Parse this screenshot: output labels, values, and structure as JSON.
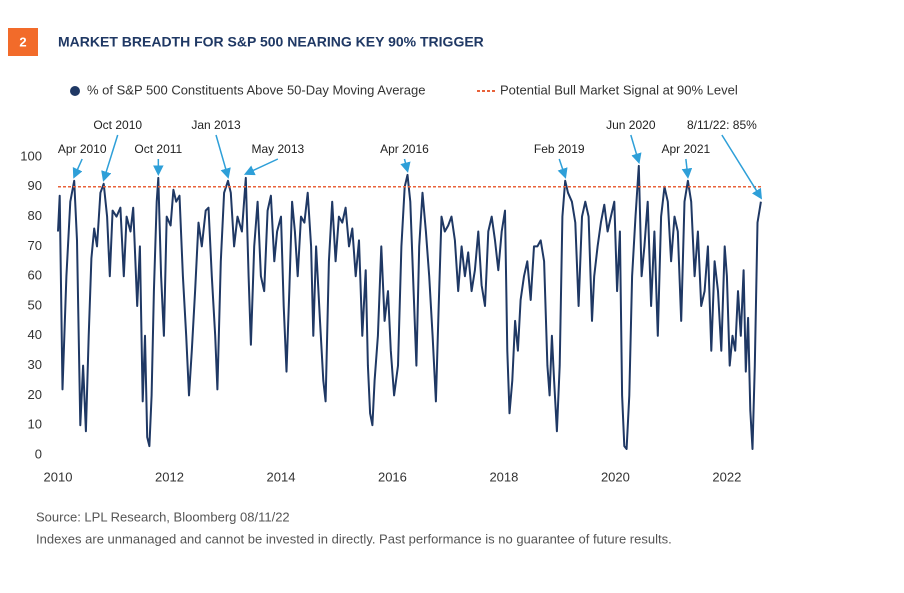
{
  "chart_data": {
    "type": "line",
    "badge": "2",
    "title": "MARKET BREADTH FOR S&P 500 NEARING KEY 90% TRIGGER",
    "series": [
      {
        "name": "% of S&P 500 Constituents Above 50-Day Moving Average",
        "color": "#1f3864",
        "x": [
          2010.0,
          2010.03,
          2010.08,
          2010.15,
          2010.22,
          2010.29,
          2010.34,
          2010.4,
          2010.45,
          2010.5,
          2010.55,
          2010.6,
          2010.65,
          2010.7,
          2010.76,
          2010.82,
          2010.88,
          2010.93,
          2010.98,
          2011.05,
          2011.12,
          2011.18,
          2011.23,
          2011.3,
          2011.35,
          2011.42,
          2011.47,
          2011.52,
          2011.56,
          2011.6,
          2011.64,
          2011.68,
          2011.72,
          2011.77,
          2011.8,
          2011.85,
          2011.9,
          2011.95,
          2012.02,
          2012.07,
          2012.12,
          2012.18,
          2012.24,
          2012.3,
          2012.35,
          2012.4,
          2012.46,
          2012.52,
          2012.58,
          2012.65,
          2012.7,
          2012.76,
          2012.82,
          2012.86,
          2012.92,
          2012.98,
          2013.05,
          2013.1,
          2013.16,
          2013.22,
          2013.3,
          2013.37,
          2013.42,
          2013.46,
          2013.52,
          2013.58,
          2013.64,
          2013.7,
          2013.76,
          2013.82,
          2013.88,
          2013.93,
          2014.0,
          2014.05,
          2014.1,
          2014.15,
          2014.2,
          2014.25,
          2014.3,
          2014.36,
          2014.42,
          2014.48,
          2014.54,
          2014.58,
          2014.63,
          2014.7,
          2014.76,
          2014.8,
          2014.86,
          2014.92,
          2014.98,
          2015.04,
          2015.1,
          2015.16,
          2015.22,
          2015.28,
          2015.34,
          2015.4,
          2015.46,
          2015.52,
          2015.56,
          2015.6,
          2015.64,
          2015.68,
          2015.74,
          2015.8,
          2015.86,
          2015.92,
          2015.97,
          2016.03,
          2016.1,
          2016.16,
          2016.22,
          2016.27,
          2016.32,
          2016.38,
          2016.43,
          2016.48,
          2016.54,
          2016.6,
          2016.66,
          2016.72,
          2016.78,
          2016.83,
          2016.88,
          2016.94,
          2017.0,
          2017.06,
          2017.12,
          2017.18,
          2017.24,
          2017.3,
          2017.36,
          2017.42,
          2017.48,
          2017.54,
          2017.6,
          2017.66,
          2017.72,
          2017.78,
          2017.84,
          2017.9,
          2017.96,
          2018.02,
          2018.06,
          2018.1,
          2018.15,
          2018.2,
          2018.25,
          2018.3,
          2018.36,
          2018.42,
          2018.48,
          2018.54,
          2018.6,
          2018.66,
          2018.72,
          2018.78,
          2018.82,
          2018.86,
          2018.9,
          2018.95,
          2019.0,
          2019.05,
          2019.1,
          2019.15,
          2019.22,
          2019.28,
          2019.34,
          2019.4,
          2019.46,
          2019.52,
          2019.58,
          2019.62,
          2019.68,
          2019.74,
          2019.8,
          2019.86,
          2019.92,
          2019.98,
          2020.03,
          2020.08,
          2020.12,
          2020.16,
          2020.2,
          2020.25,
          2020.3,
          2020.36,
          2020.42,
          2020.47,
          2020.52,
          2020.58,
          2020.64,
          2020.7,
          2020.76,
          2020.82,
          2020.88,
          2020.94,
          2021.0,
          2021.06,
          2021.12,
          2021.18,
          2021.24,
          2021.3,
          2021.36,
          2021.42,
          2021.48,
          2021.54,
          2021.6,
          2021.66,
          2021.72,
          2021.78,
          2021.84,
          2021.9,
          2021.96,
          2022.0,
          2022.05,
          2022.1,
          2022.15,
          2022.2,
          2022.25,
          2022.3,
          2022.34,
          2022.38,
          2022.42,
          2022.46,
          2022.5,
          2022.55,
          2022.61
        ],
        "values": [
          75,
          87,
          22,
          60,
          85,
          92,
          72,
          10,
          30,
          8,
          40,
          66,
          76,
          70,
          88,
          91,
          80,
          60,
          82,
          80,
          83,
          60,
          80,
          75,
          83,
          50,
          70,
          18,
          40,
          6,
          3,
          20,
          55,
          85,
          93,
          60,
          40,
          80,
          77,
          89,
          85,
          87,
          60,
          40,
          20,
          35,
          55,
          78,
          70,
          82,
          83,
          60,
          40,
          22,
          65,
          88,
          92,
          88,
          70,
          80,
          75,
          93,
          60,
          37,
          70,
          85,
          60,
          55,
          82,
          87,
          65,
          75,
          80,
          50,
          28,
          55,
          85,
          75,
          60,
          80,
          78,
          88,
          70,
          40,
          70,
          45,
          25,
          18,
          65,
          85,
          65,
          80,
          78,
          83,
          70,
          76,
          60,
          72,
          40,
          62,
          30,
          14,
          10,
          25,
          40,
          70,
          45,
          55,
          35,
          20,
          30,
          70,
          90,
          94,
          85,
          55,
          30,
          70,
          88,
          75,
          60,
          40,
          18,
          50,
          80,
          75,
          77,
          80,
          72,
          55,
          70,
          60,
          68,
          55,
          62,
          75,
          57,
          50,
          75,
          80,
          72,
          62,
          75,
          82,
          35,
          14,
          25,
          45,
          35,
          52,
          60,
          65,
          52,
          70,
          70,
          72,
          65,
          30,
          20,
          40,
          25,
          8,
          30,
          80,
          92,
          88,
          85,
          78,
          50,
          80,
          85,
          80,
          45,
          60,
          70,
          78,
          84,
          75,
          80,
          85,
          55,
          75,
          20,
          3,
          2,
          20,
          60,
          80,
          97,
          60,
          70,
          85,
          50,
          75,
          40,
          80,
          90,
          85,
          65,
          80,
          75,
          45,
          85,
          92,
          85,
          60,
          75,
          50,
          55,
          70,
          35,
          65,
          55,
          35,
          70,
          60,
          30,
          40,
          35,
          55,
          40,
          62,
          28,
          46,
          15,
          2,
          30,
          78,
          85
        ]
      }
    ],
    "threshold": {
      "name": "Potential Bull Market Signal at 90% Level",
      "value": 90,
      "color": "#e8623a"
    },
    "annotations": [
      {
        "text": "Apr 2010",
        "x": 2010.29,
        "y": 92
      },
      {
        "text": "Oct 2010",
        "x": 2010.82,
        "y": 91
      },
      {
        "text": "Oct 2011",
        "x": 2011.8,
        "y": 93
      },
      {
        "text": "Jan 2013",
        "x": 2013.05,
        "y": 92
      },
      {
        "text": "May 2013",
        "x": 2013.37,
        "y": 93
      },
      {
        "text": "Apr 2016",
        "x": 2016.27,
        "y": 94
      },
      {
        "text": "Feb 2019",
        "x": 2019.1,
        "y": 92
      },
      {
        "text": "Jun 2020",
        "x": 2020.42,
        "y": 97
      },
      {
        "text": "Apr 2021",
        "x": 2021.3,
        "y": 92
      },
      {
        "text": "8/11/22: 85%",
        "x": 2022.61,
        "y": 85
      }
    ],
    "xlim": [
      2010,
      2022.63
    ],
    "xticks": [
      2010,
      2012,
      2014,
      2016,
      2018,
      2020,
      2022
    ],
    "ylim": [
      0,
      100
    ],
    "yticks": [
      0,
      10,
      20,
      30,
      40,
      50,
      60,
      70,
      80,
      90,
      100
    ],
    "source": "Source: LPL Research, Bloomberg  08/11/22",
    "disclaimer": "Indexes are unmanaged and cannot be invested in directly. Past performance is no guarantee of future results."
  }
}
